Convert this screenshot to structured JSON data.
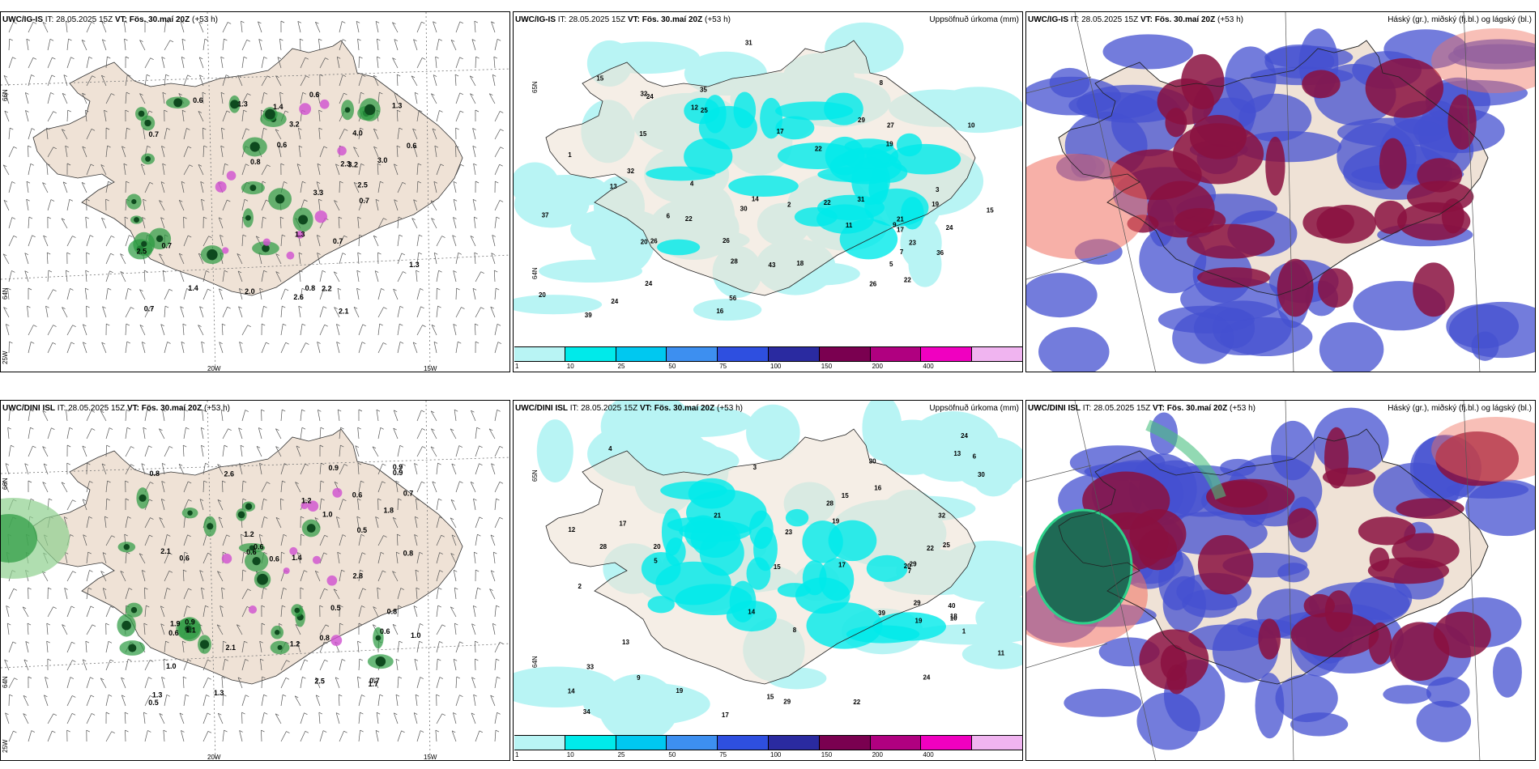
{
  "panels": [
    {
      "model": "UWC/IG-IS",
      "it": "IT: 28.05.2025 15Z",
      "vt": "VT: Fös. 30.maí 20Z",
      "lead": "(+53 h)",
      "right": "",
      "kind": "wind",
      "lon_labels": [
        "20W",
        "15W"
      ],
      "lat_labels": [
        "66N",
        "64N",
        "25W"
      ],
      "values": [
        "1.4",
        "2.6",
        "0.8",
        "0.7",
        "0.6",
        "0.6",
        "0.7",
        "0.6",
        "0.7",
        "1.3",
        "0.7",
        "0.6",
        "2.5",
        "2.3",
        "1.4",
        "4.0",
        "3.3",
        "2.5",
        "3.0",
        "3.2",
        "3.2",
        "1.3",
        "0.8",
        "2.0",
        "2.2",
        "1.3",
        "1.3",
        "0.7",
        "2.1"
      ]
    },
    {
      "model": "UWC/IG-IS",
      "it": "IT: 28.05.2025 15Z",
      "vt": "VT: Fös. 30.maí 20Z",
      "lead": "(+53 h)",
      "right": "Uppsöfnuð úrkoma (mm)",
      "kind": "precip",
      "lat_labels": [
        "65N",
        "64N"
      ],
      "values": [
        "16",
        "15",
        "27",
        "22",
        "22",
        "20",
        "23",
        "19",
        "24",
        "12",
        "13",
        "15",
        "17",
        "18",
        "24",
        "29",
        "26",
        "24",
        "32",
        "37",
        "56",
        "35",
        "26",
        "24",
        "43",
        "36",
        "31",
        "15",
        "21",
        "22",
        "39",
        "22",
        "20",
        "32",
        "26",
        "10",
        "11",
        "14",
        "8",
        "9",
        "7",
        "5",
        "3",
        "2",
        "4",
        "6",
        "1",
        "17",
        "25",
        "31",
        "30",
        "28",
        "19"
      ]
    },
    {
      "model": "UWC/IG-IS",
      "it": "IT: 28.05.2025 15Z",
      "vt": "VT: Fös. 30.maí 20Z",
      "lead": "(+53 h)",
      "right": "Háský (gr.), miðský (fj.bl.) og lágský (bl.)",
      "kind": "cloud"
    },
    {
      "model": "UWC/DINI ISL",
      "it": "IT: 28.05.2025 15Z",
      "vt": "VT: Fös. 30.maí 20Z",
      "lead": "(+53 h)",
      "right": "",
      "kind": "wind",
      "lon_labels": [
        "20W",
        "15W"
      ],
      "lat_labels": [
        "66N",
        "64N",
        "25W"
      ],
      "values": [
        "0.8",
        "0.5",
        "0.8",
        "0.5",
        "2.1",
        "0.7",
        "0.9",
        "0.6",
        "1.2",
        "0.8",
        "0.6",
        "1.7",
        "1.4",
        "1.2",
        "1.3",
        "0.6",
        "2.6",
        "1.0",
        "0.6",
        "0.8",
        "0.9",
        "1.0",
        "2.8",
        "0.6",
        "1.1",
        "1.9",
        "0.5",
        "0.9",
        "1.2",
        "0.9",
        "1.3",
        "0.6",
        "2.1",
        "0.7",
        "1.8",
        "2.5",
        "1.0",
        "0.6"
      ]
    },
    {
      "model": "UWC/DINI ISL",
      "it": "IT: 28.05.2025 15Z",
      "vt": "VT: Fös. 30.maí 20Z",
      "lead": "(+53 h)",
      "right": "Uppsöfnuð úrkoma (mm)",
      "kind": "precip",
      "lat_labels": [
        "65N",
        "64N"
      ],
      "values": [
        "30",
        "25",
        "28",
        "33",
        "29",
        "17",
        "24",
        "24",
        "21",
        "30",
        "19",
        "15",
        "22",
        "29",
        "29",
        "28",
        "32",
        "13",
        "17",
        "19",
        "34",
        "15",
        "17",
        "18",
        "20",
        "19",
        "13",
        "11",
        "10",
        "14",
        "12",
        "39",
        "40",
        "20",
        "22",
        "23",
        "15",
        "14",
        "16",
        "8",
        "9",
        "7",
        "5",
        "3",
        "2",
        "6",
        "4",
        "1"
      ]
    },
    {
      "model": "UWC/DINI ISL",
      "it": "IT: 28.05.2025 15Z",
      "vt": "VT: Fös. 30.maí 20Z",
      "lead": "(+53 h)",
      "right": "Háský (gr.), miðský (fj.bl.) og lágský (bl.)",
      "kind": "cloud"
    }
  ],
  "colorbar": {
    "colors": [
      "#b8f4f4",
      "#00eaea",
      "#00c8f0",
      "#3d8ff0",
      "#2e4fe0",
      "#2a2aa0",
      "#7a0050",
      "#b00080",
      "#f000c0",
      "#f0b4f0"
    ],
    "ticks": [
      "1",
      "10",
      "25",
      "50",
      "75",
      "100",
      "150",
      "200",
      "400"
    ]
  },
  "colors": {
    "land": "#efe2d6",
    "sea": "#ffffff",
    "precip_light": "#b8f4f4",
    "precip_mid": "#00eaea",
    "cloud_low": "#4450d0",
    "cloud_mid": "#8a1040",
    "cloud_high": "#f07060",
    "wind_green": "#2a9a40",
    "wind_dark": "#0e4a1e",
    "wind_pink": "#d050d0"
  }
}
